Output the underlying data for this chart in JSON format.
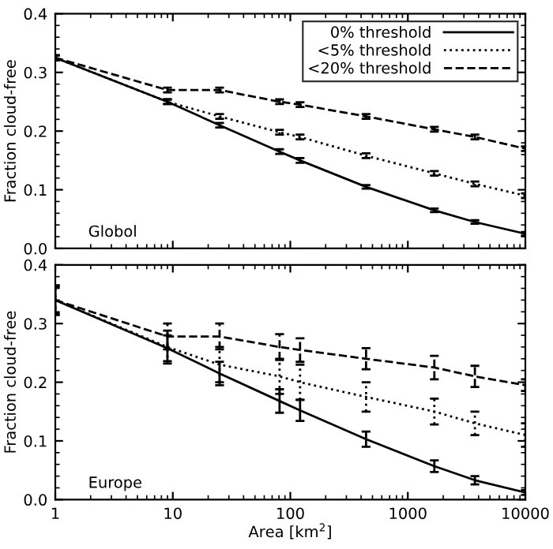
{
  "chart_data": [
    {
      "type": "line",
      "ylabel": "Fraction cloud-free",
      "annotations": [
        "Globol"
      ],
      "legend": "top right",
      "log": "x",
      "tick_labels": "y",
      "x": [
        1,
        9,
        25,
        81,
        121,
        441,
        1681,
        3721,
        10000
      ],
      "xlim": [
        1,
        10000
      ],
      "xticks": [
        1,
        10,
        100,
        1000,
        10000
      ],
      "ylim": [
        0,
        0.4
      ],
      "yticks": [
        {
          "value": 0,
          "label": "0.0"
        },
        0.1,
        0.2,
        0.3,
        0.4
      ],
      "series": [
        {
          "name": "0% threshold",
          "color": "#000000",
          "line_style": "solid",
          "values": [
            0.325,
            0.25,
            0.21,
            0.165,
            0.15,
            0.105,
            0.065,
            0.045,
            0.025
          ],
          "errors": [
            0.004,
            0.004,
            0.004,
            0.004,
            0.004,
            0.003,
            0.003,
            0.003,
            0.003
          ]
        },
        {
          "name": "<5% threshold",
          "color": "#000000",
          "line_style": "dotted",
          "values": [
            0.325,
            0.25,
            0.225,
            0.198,
            0.19,
            0.158,
            0.128,
            0.11,
            0.09
          ],
          "errors": [
            0.004,
            0.004,
            0.004,
            0.004,
            0.004,
            0.004,
            0.004,
            0.004,
            0.004
          ]
        },
        {
          "name": "<20% threshold",
          "color": "#000000",
          "line_style": "dashed",
          "values": [
            0.325,
            0.27,
            0.27,
            0.25,
            0.245,
            0.225,
            0.203,
            0.19,
            0.17
          ],
          "errors": [
            0.004,
            0.004,
            0.004,
            0.004,
            0.004,
            0.004,
            0.004,
            0.004,
            0.004
          ]
        }
      ]
    },
    {
      "type": "line",
      "ylabel": "Fraction cloud-free",
      "xlabel": "Area [km$^{2}$]",
      "annotations": [
        "Europe"
      ],
      "log": "x",
      "x": [
        1,
        9,
        25,
        81,
        121,
        441,
        1681,
        3721,
        10000
      ],
      "xlim": [
        1,
        10000
      ],
      "xticks": [
        1,
        10,
        100,
        1000,
        10000
      ],
      "ylim": [
        0,
        0.4
      ],
      "yticks": [
        {
          "value": 0,
          "label": "0.0"
        },
        0.1,
        0.2,
        0.3,
        0.4
      ],
      "series": [
        {
          "color": "#000000",
          "line_style": "solid",
          "values": [
            0.34,
            0.258,
            0.215,
            0.168,
            0.152,
            0.103,
            0.057,
            0.033,
            0.012
          ],
          "errors": [
            0.025,
            0.022,
            0.02,
            0.02,
            0.018,
            0.013,
            0.01,
            0.007,
            0.004
          ]
        },
        {
          "color": "#000000",
          "line_style": "dotted",
          "values": [
            0.34,
            0.26,
            0.23,
            0.21,
            0.2,
            0.175,
            0.15,
            0.13,
            0.11
          ],
          "errors": [
            0.025,
            0.028,
            0.03,
            0.03,
            0.03,
            0.025,
            0.022,
            0.02,
            0.02
          ]
        },
        {
          "color": "#000000",
          "line_style": "dashed",
          "values": [
            0.34,
            0.278,
            0.278,
            0.26,
            0.255,
            0.24,
            0.225,
            0.21,
            0.195
          ],
          "errors": [
            0.022,
            0.022,
            0.022,
            0.022,
            0.02,
            0.018,
            0.02,
            0.018,
            0.01
          ]
        }
      ]
    }
  ]
}
